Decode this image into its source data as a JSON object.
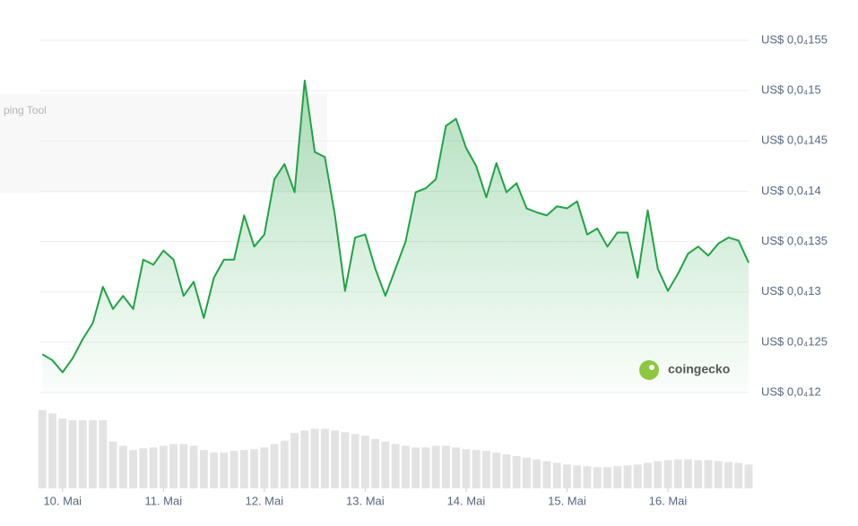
{
  "chart_data": {
    "type": "line",
    "watermark": "coingecko",
    "overlay_text": "ping Tool",
    "xlim": [
      9.78,
      16.8
    ],
    "xticks": [
      {
        "value": 10,
        "label": "10. Mai"
      },
      {
        "value": 11,
        "label": "11. Mai"
      },
      {
        "value": 12,
        "label": "12. Mai"
      },
      {
        "value": 13,
        "label": "13. Mai"
      },
      {
        "value": 14,
        "label": "14. Mai"
      },
      {
        "value": 15,
        "label": "15. Mai"
      },
      {
        "value": 16,
        "label": "16. Mai"
      }
    ],
    "ylim": [
      1.2e-05,
      1.55e-05
    ],
    "yticks": [
      {
        "value": 1.2e-05,
        "label": "US$ 0,0₄12"
      },
      {
        "value": 1.25e-05,
        "label": "US$ 0,0₄125"
      },
      {
        "value": 1.3e-05,
        "label": "US$ 0,0₄13"
      },
      {
        "value": 1.35e-05,
        "label": "US$ 0,0₄135"
      },
      {
        "value": 1.4e-05,
        "label": "US$ 0,0₄14"
      },
      {
        "value": 1.45e-05,
        "label": "US$ 0,0₄145"
      },
      {
        "value": 1.5e-05,
        "label": "US$ 0,0₄15"
      },
      {
        "value": 1.55e-05,
        "label": "US$ 0,0₄155"
      }
    ],
    "y2lim": [
      0,
      100
    ],
    "grid": true,
    "x": [
      9.8,
      9.9,
      10.0,
      10.1,
      10.2,
      10.3,
      10.4,
      10.5,
      10.6,
      10.7,
      10.8,
      10.9,
      11.0,
      11.1,
      11.2,
      11.3,
      11.4,
      11.5,
      11.6,
      11.7,
      11.8,
      11.9,
      12.0,
      12.1,
      12.2,
      12.3,
      12.4,
      12.5,
      12.6,
      12.7,
      12.8,
      12.9,
      13.0,
      13.1,
      13.2,
      13.3,
      13.4,
      13.5,
      13.6,
      13.7,
      13.8,
      13.9,
      14.0,
      14.1,
      14.2,
      14.3,
      14.4,
      14.5,
      14.6,
      14.7,
      14.8,
      14.9,
      15.0,
      15.1,
      15.2,
      15.3,
      15.4,
      15.5,
      15.6,
      15.7,
      15.8,
      15.9,
      16.0,
      16.1,
      16.2,
      16.3,
      16.4,
      16.5,
      16.6,
      16.7,
      16.8
    ],
    "series": [
      {
        "color": "#1fa443",
        "values": [
          1.238e-05,
          1.232e-05,
          1.22e-05,
          1.234e-05,
          1.253e-05,
          1.269e-05,
          1.305e-05,
          1.283e-05,
          1.296e-05,
          1.283e-05,
          1.332e-05,
          1.327e-05,
          1.341e-05,
          1.332e-05,
          1.296e-05,
          1.31e-05,
          1.274e-05,
          1.314e-05,
          1.332e-05,
          1.332e-05,
          1.376e-05,
          1.345e-05,
          1.357e-05,
          1.412e-05,
          1.427e-05,
          1.399e-05,
          1.51e-05,
          1.439e-05,
          1.434e-05,
          1.376e-05,
          1.301e-05,
          1.354e-05,
          1.357e-05,
          1.323e-05,
          1.296e-05,
          1.323e-05,
          1.35e-05,
          1.399e-05,
          1.403e-05,
          1.412e-05,
          1.465e-05,
          1.472e-05,
          1.443e-05,
          1.425e-05,
          1.394e-05,
          1.428e-05,
          1.399e-05,
          1.408e-05,
          1.383e-05,
          1.379e-05,
          1.376e-05,
          1.385e-05,
          1.383e-05,
          1.39e-05,
          1.357e-05,
          1.363e-05,
          1.345e-05,
          1.359e-05,
          1.359e-05,
          1.314e-05,
          1.381e-05,
          1.323e-05,
          1.301e-05,
          1.318e-05,
          1.338e-05,
          1.345e-05,
          1.336e-05,
          1.348e-05,
          1.354e-05,
          1.351e-05,
          1.329e-05
        ]
      },
      {
        "color": "#e3e3e3",
        "axis": "y2",
        "values": [
          92,
          88,
          82,
          80,
          80,
          80,
          80,
          55,
          50,
          45,
          47,
          48,
          50,
          52,
          52,
          50,
          45,
          42,
          42,
          44,
          45,
          46,
          48,
          52,
          56,
          65,
          68,
          70,
          70,
          68,
          66,
          64,
          62,
          58,
          55,
          52,
          50,
          48,
          48,
          50,
          50,
          48,
          46,
          45,
          44,
          42,
          40,
          38,
          36,
          34,
          32,
          30,
          28,
          27,
          26,
          25,
          25,
          26,
          27,
          28,
          30,
          32,
          33,
          34,
          34,
          33,
          33,
          32,
          31,
          30,
          28
        ]
      }
    ]
  }
}
